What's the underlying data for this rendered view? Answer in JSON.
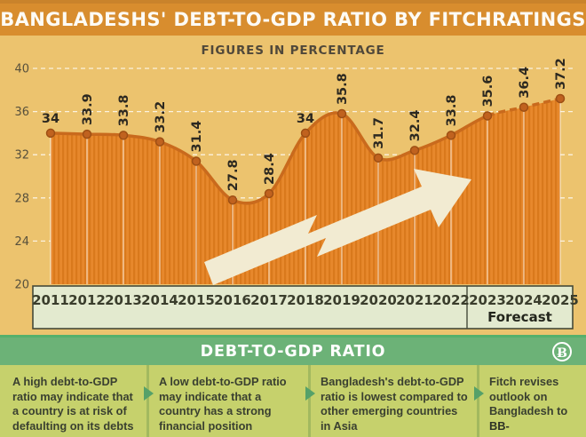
{
  "title": "BANGLADESHS' DEBT-TO-GDP RATIO BY FITCHRATINGS",
  "subtitle": "FIGURES IN PERCENTAGE",
  "chart_data": {
    "type": "area",
    "title": "BANGLADESHS' DEBT-TO-GDP RATIO BY FITCHRATINGS",
    "subtitle": "FIGURES IN PERCENTAGE",
    "x": [
      2011,
      2012,
      2013,
      2014,
      2015,
      2016,
      2017,
      2018,
      2019,
      2020,
      2021,
      2022,
      2023,
      2024,
      2025
    ],
    "values": [
      34,
      33.9,
      33.8,
      33.2,
      31.4,
      27.8,
      28.4,
      34,
      35.8,
      31.7,
      32.4,
      33.8,
      35.6,
      36.4,
      37.2
    ],
    "ylim": [
      20,
      40
    ],
    "yticks": [
      40,
      36,
      32,
      28,
      24,
      20
    ],
    "grid": true,
    "forecast_start_year": 2023,
    "forecast_label": "Forecast",
    "colors": {
      "title_bar": "#d88d2e",
      "chart_bg": "#ecc36e",
      "area_fill": "#e7882c",
      "area_stripe": "#d9791c",
      "line": "#c96a1d",
      "marker": "#c0621f",
      "marker_edge": "#9e4f14",
      "arrow": "#f2ebd2",
      "axis_box_bg": "#e3eacf",
      "axis_box_border": "#454a39",
      "green_band": "#6cb277",
      "panel_bg": "#c6d16c"
    }
  },
  "footer": {
    "heading": "DEBT-TO-GDP RATIO",
    "logo_glyph": "Ƀ",
    "cards": [
      {
        "text": "A high debt-to-GDP ratio may indicate that a country is at risk of defaulting on its debts"
      },
      {
        "text": "A low debt-to-GDP ratio may indicate that a country has a strong financial position"
      },
      {
        "text": "Bangladesh's debt-to-GDP ratio is lowest compared to other emerging countries in Asia"
      },
      {
        "text": "Fitch revises outlook on Bangladesh to",
        "bold": "BB-"
      }
    ]
  }
}
